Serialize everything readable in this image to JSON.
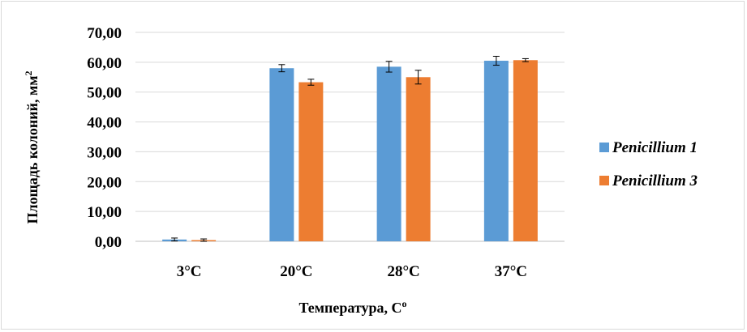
{
  "chart_data": {
    "type": "bar",
    "categories": [
      "3°C",
      "20°C",
      "28°C",
      "37°C"
    ],
    "series": [
      {
        "name": "Penicillium 1",
        "color": "#5b9bd5",
        "values": [
          0.6,
          58.0,
          58.5,
          60.5
        ],
        "errors": [
          0.5,
          1.2,
          1.8,
          1.5
        ]
      },
      {
        "name": "Penicillium 3",
        "color": "#ed7d31",
        "values": [
          0.4,
          53.3,
          55.0,
          60.7
        ],
        "errors": [
          0.4,
          1.0,
          2.3,
          0.5
        ]
      }
    ],
    "y_ticks": [
      "0,00",
      "10,00",
      "20,00",
      "30,00",
      "40,00",
      "50,00",
      "60,00",
      "70,00"
    ],
    "ylim": [
      0,
      70
    ],
    "xlabel": "Температура, С",
    "xlabel_sup": "о",
    "ylabel": "Площадь колоний, мм",
    "ylabel_sup": "2",
    "grid": true,
    "legend_position": "right"
  }
}
